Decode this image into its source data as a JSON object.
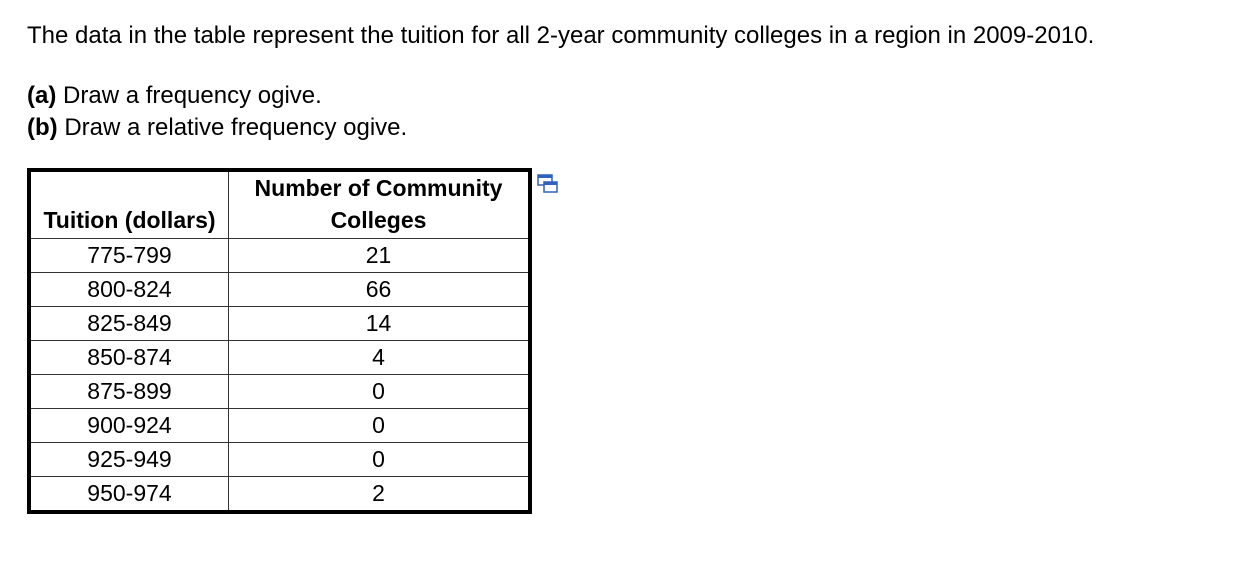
{
  "question": {
    "intro": "The data in the table represent the tuition for all 2-year community colleges in a region in 2009-2010.",
    "parts": [
      {
        "label": "(a)",
        "text": "Draw a frequency ogive."
      },
      {
        "label": "(b)",
        "text": "Draw a relative frequency ogive."
      }
    ]
  },
  "table": {
    "headers": [
      "Tuition (dollars)",
      "Number of Community Colleges"
    ],
    "rows": [
      [
        "775-799",
        21
      ],
      [
        "800-824",
        66
      ],
      [
        "825-849",
        14
      ],
      [
        "850-874",
        4
      ],
      [
        "875-899",
        0
      ],
      [
        "900-924",
        0
      ],
      [
        "925-949",
        0
      ],
      [
        "950-974",
        2
      ]
    ]
  }
}
